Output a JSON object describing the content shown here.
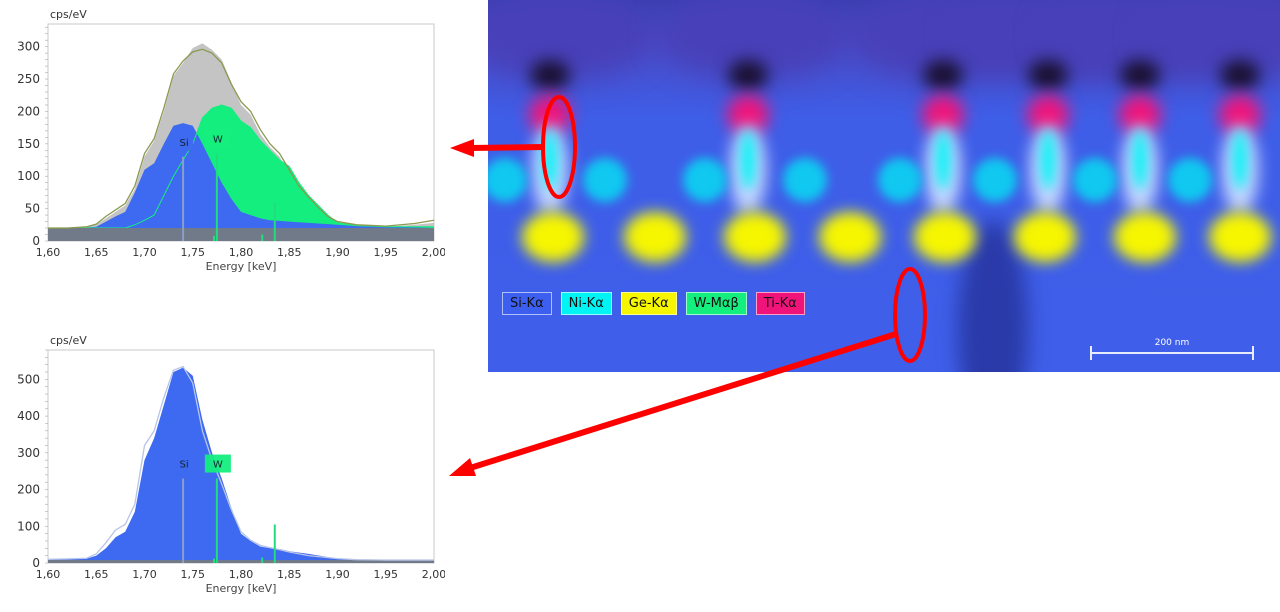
{
  "chart_data": [
    {
      "type": "area",
      "ylabel": "cps/eV",
      "xlabel": "Energy [keV]",
      "xlim": [
        1.6,
        2.0
      ],
      "ylim": [
        0,
        335
      ],
      "xticks": [
        "1,60",
        "1,65",
        "1,70",
        "1,75",
        "1,80",
        "1,85",
        "1,90",
        "1,95",
        "2,00"
      ],
      "yticks": [
        "0",
        "50",
        "100",
        "150",
        "200",
        "250",
        "300"
      ],
      "ytick_values": [
        0,
        50,
        100,
        150,
        200,
        250,
        300
      ],
      "x": [
        1.6,
        1.62,
        1.64,
        1.65,
        1.66,
        1.67,
        1.68,
        1.69,
        1.7,
        1.71,
        1.72,
        1.73,
        1.74,
        1.75,
        1.76,
        1.77,
        1.78,
        1.79,
        1.8,
        1.81,
        1.82,
        1.83,
        1.84,
        1.85,
        1.86,
        1.87,
        1.88,
        1.89,
        1.9,
        1.92,
        1.95,
        1.98,
        2.0
      ],
      "series": [
        {
          "key": "total",
          "values": [
            20,
            20,
            22,
            25,
            35,
            45,
            55,
            80,
            130,
            155,
            200,
            255,
            275,
            298,
            305,
            295,
            280,
            245,
            210,
            195,
            165,
            145,
            130,
            105,
            80,
            65,
            50,
            35,
            28,
            24,
            22,
            25,
            28
          ],
          "color": "#c4c4c4"
        },
        {
          "key": "fit",
          "values": [
            20,
            20,
            22,
            26,
            38,
            48,
            58,
            85,
            135,
            158,
            205,
            258,
            278,
            292,
            296,
            290,
            275,
            242,
            215,
            200,
            172,
            150,
            135,
            110,
            85,
            68,
            52,
            38,
            30,
            25,
            23,
            27,
            32
          ],
          "color": "#8a9a50"
        },
        {
          "key": "si",
          "values": [
            20,
            20,
            21,
            22,
            30,
            38,
            45,
            75,
            110,
            120,
            150,
            178,
            182,
            178,
            150,
            120,
            90,
            65,
            45,
            40,
            35,
            32,
            31,
            30,
            29,
            28,
            27,
            26,
            25,
            23,
            22,
            21,
            20
          ],
          "color": "#3d6af0"
        },
        {
          "key": "w",
          "values": [
            20,
            20,
            20,
            20,
            20,
            20,
            20,
            25,
            32,
            40,
            70,
            100,
            125,
            150,
            190,
            205,
            210,
            205,
            185,
            175,
            155,
            140,
            125,
            115,
            90,
            70,
            55,
            40,
            28,
            24,
            22,
            22,
            22
          ],
          "color": "#14ee7e"
        },
        {
          "key": "background",
          "values": [
            20,
            20,
            20,
            20,
            20,
            20,
            20,
            20,
            20,
            20,
            20,
            20,
            20,
            20,
            20,
            20,
            20,
            20,
            20,
            20,
            20,
            20,
            20,
            20,
            20,
            20,
            20,
            20,
            20,
            20,
            20,
            20,
            20
          ],
          "color": "#707a88"
        }
      ],
      "peak_markers": [
        {
          "label": "Si",
          "energy": 1.74,
          "height": 130,
          "color": "#8c9ec8",
          "label_color": "#3d6af0"
        },
        {
          "label": "W",
          "energy": 1.775,
          "height": 135,
          "color": "#22dd80",
          "label_color": "#14ee7e"
        },
        {
          "energy": 1.835,
          "height": 60,
          "color": "#22dd80"
        },
        {
          "energy": 1.822,
          "height": 10,
          "color": "#22dd80"
        },
        {
          "energy": 1.772,
          "height": 8,
          "color": "#22dd80"
        }
      ]
    },
    {
      "type": "area",
      "ylabel": "cps/eV",
      "xlabel": "Energy [keV]",
      "xlim": [
        1.6,
        2.0
      ],
      "ylim": [
        0,
        580
      ],
      "xticks": [
        "1,60",
        "1,65",
        "1,70",
        "1,75",
        "1,80",
        "1,85",
        "1,90",
        "1,95",
        "2,00"
      ],
      "yticks": [
        "0",
        "100",
        "200",
        "300",
        "400",
        "500"
      ],
      "ytick_values": [
        0,
        100,
        200,
        300,
        400,
        500
      ],
      "x": [
        1.6,
        1.62,
        1.64,
        1.65,
        1.66,
        1.67,
        1.68,
        1.69,
        1.7,
        1.71,
        1.72,
        1.73,
        1.74,
        1.75,
        1.76,
        1.77,
        1.78,
        1.79,
        1.8,
        1.81,
        1.82,
        1.83,
        1.84,
        1.85,
        1.87,
        1.9,
        1.92,
        1.95,
        2.0
      ],
      "series": [
        {
          "key": "si",
          "values": [
            10,
            11,
            12,
            20,
            40,
            70,
            85,
            140,
            280,
            340,
            430,
            520,
            532,
            510,
            390,
            300,
            230,
            150,
            80,
            60,
            45,
            40,
            38,
            32,
            25,
            12,
            8,
            8,
            8
          ],
          "color": "#3d6af0"
        },
        {
          "key": "fit",
          "values": [
            10,
            11,
            13,
            25,
            55,
            90,
            105,
            160,
            320,
            360,
            450,
            525,
            535,
            490,
            360,
            280,
            215,
            145,
            85,
            62,
            48,
            42,
            36,
            30,
            20,
            12,
            9,
            8,
            8
          ],
          "color": "#b8c4e8"
        },
        {
          "key": "background",
          "values": [
            8,
            8,
            8,
            8,
            8,
            8,
            8,
            8,
            8,
            8,
            8,
            8,
            8,
            8,
            8,
            8,
            8,
            8,
            8,
            8,
            8,
            8,
            8,
            8,
            8,
            8,
            8,
            8,
            8
          ],
          "color": "#707a88"
        }
      ],
      "peak_markers": [
        {
          "label": "Si",
          "energy": 1.74,
          "height": 230,
          "color": "#8c9ec8",
          "label_color": "#3d6af0"
        },
        {
          "label": "W",
          "energy": 1.775,
          "height": 230,
          "color": "#22dd80",
          "label_color": "#14ee7e"
        },
        {
          "energy": 1.835,
          "height": 105,
          "color": "#22dd80"
        },
        {
          "energy": 1.822,
          "height": 15,
          "color": "#22dd80"
        },
        {
          "energy": 1.772,
          "height": 12,
          "color": "#22dd80"
        }
      ]
    }
  ],
  "map": {
    "legend": [
      {
        "label": "Si-Kα",
        "color": "#3d5ff0"
      },
      {
        "label": "Ni-Kα",
        "color": "#00f4f4"
      },
      {
        "label": "Ge-Kα",
        "color": "#f6f600"
      },
      {
        "label": "W-Mαβ",
        "color": "#14ee7e"
      },
      {
        "label": "Ti-Kα",
        "color": "#f0147a"
      }
    ],
    "scale_bar": "200 nm"
  },
  "annotation_color": "#ff0000"
}
